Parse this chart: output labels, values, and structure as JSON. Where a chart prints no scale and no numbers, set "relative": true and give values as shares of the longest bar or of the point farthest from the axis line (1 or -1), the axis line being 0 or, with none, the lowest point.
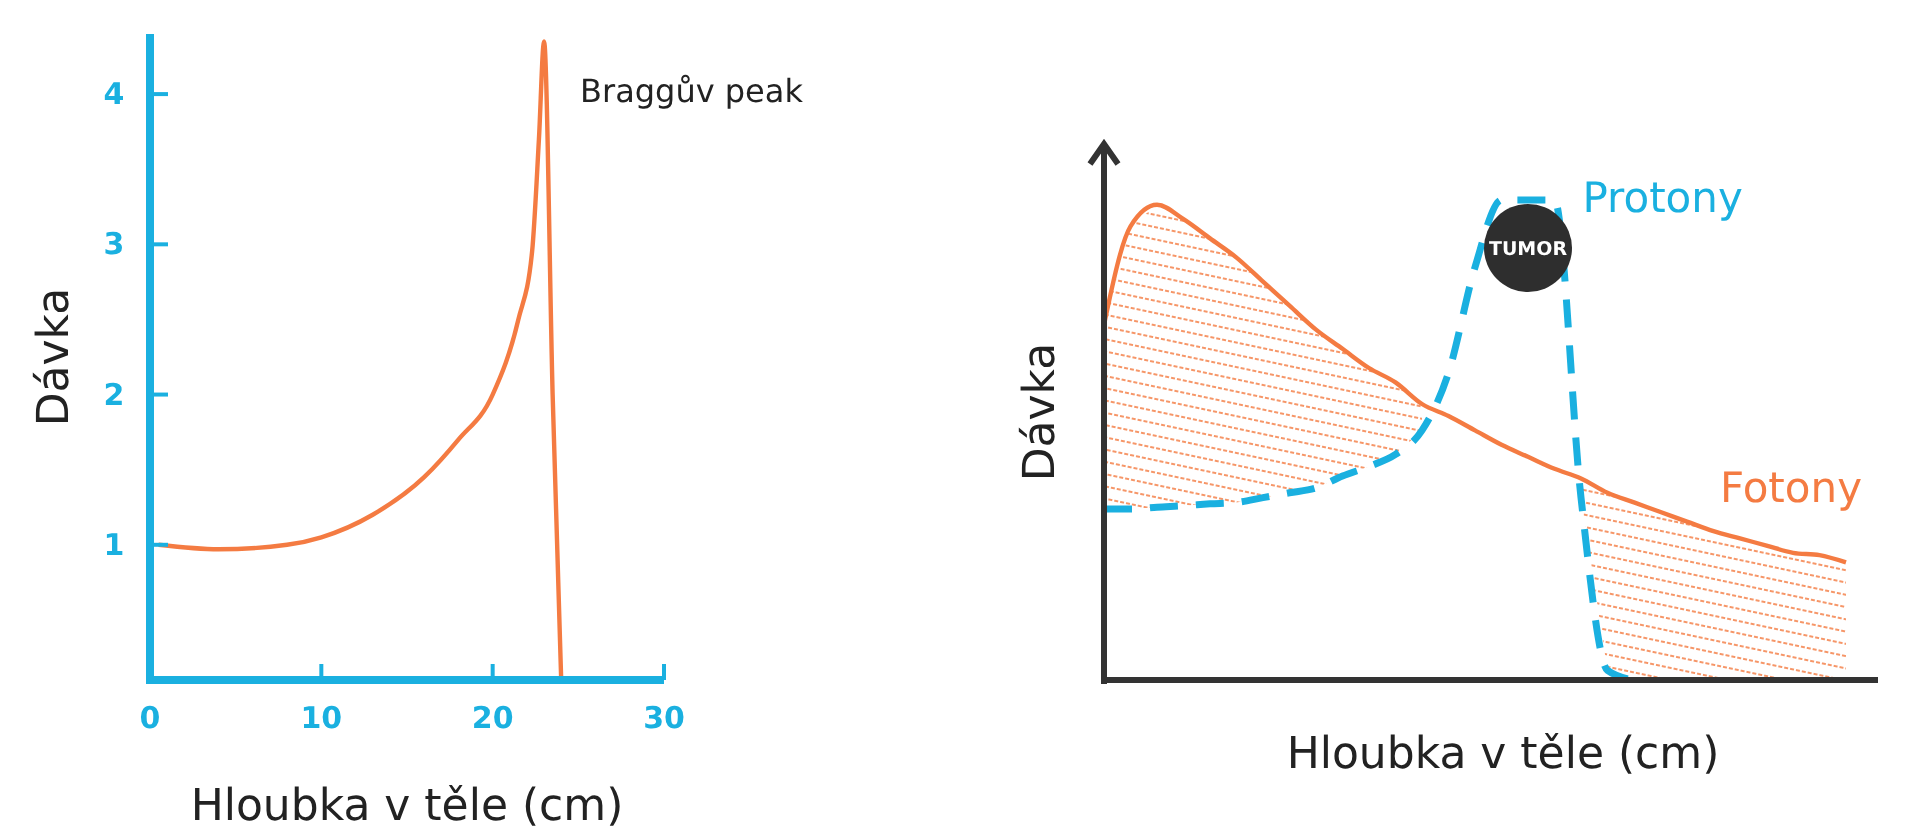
{
  "chart_data": [
    {
      "type": "line",
      "xlabel": "Hloubka v těle (cm)",
      "ylabel": "Dávka",
      "xlim": [
        0,
        30
      ],
      "ylim": [
        0.1,
        4.4
      ],
      "xticks": [
        0,
        10,
        20,
        30
      ],
      "yticks": [
        1,
        2,
        3,
        4
      ],
      "grid": false,
      "legend": false,
      "marker": "none",
      "annotations": [
        {
          "text": "Braggův peak",
          "x": 23,
          "y": 4.35
        }
      ],
      "series": [
        {
          "color": "#f47b42",
          "x": [
            0.5,
            4,
            8,
            10,
            13,
            16,
            18,
            20,
            21.5,
            22.3,
            22.7,
            23,
            23.5,
            24
          ],
          "values": [
            1.0,
            0.97,
            1.0,
            1.05,
            1.2,
            1.45,
            1.7,
            2.0,
            2.5,
            2.95,
            3.7,
            4.35,
            2.0,
            0.1
          ]
        }
      ]
    },
    {
      "type": "line",
      "relative": true,
      "xlabel": "Hloubka v těle (cm)",
      "ylabel": "Dávka",
      "grid": false,
      "legend": false,
      "marker": "none",
      "categories": [
        null,
        null,
        null,
        null,
        null,
        null,
        null,
        null,
        null,
        null,
        null,
        null,
        null,
        null,
        null,
        null,
        null,
        null,
        null,
        null,
        null,
        null,
        null,
        null,
        null,
        null,
        null,
        null,
        null
      ],
      "annotations": [
        {
          "text": "TUMOR",
          "y": 0.9
        }
      ],
      "series": [
        {
          "name": "Fotony",
          "color": "#f47b42",
          "line_style": "solid",
          "values": [
            0.74,
            0.945,
            0.99,
            0.96,
            0.92,
            0.88,
            0.83,
            0.78,
            0.73,
            0.69,
            0.65,
            0.62,
            0.575,
            0.55,
            0.52,
            0.49,
            0.465,
            0.44,
            0.42,
            0.39,
            0.37,
            0.35,
            0.33,
            0.31,
            0.295,
            0.28,
            0.265,
            0.26,
            0.245
          ],
          "lower": [
            0.356,
            0.356,
            0.36,
            0.363,
            0.367,
            0.37,
            0.38,
            0.39,
            0.4,
            0.425,
            0.445,
            0.47,
            0.52,
            null,
            null,
            null,
            null,
            null,
            0.38,
            0.02,
            0,
            0,
            0,
            0,
            0,
            0,
            0,
            0,
            0
          ],
          "upper": [
            0.74,
            0.945,
            0.99,
            0.96,
            0.92,
            0.88,
            0.83,
            0.78,
            0.73,
            0.69,
            0.65,
            0.62,
            0.575,
            null,
            null,
            null,
            null,
            null,
            0.42,
            0.39,
            0.37,
            0.35,
            0.33,
            0.31,
            0.295,
            0.28,
            0.265,
            0.26,
            0.245
          ]
        },
        {
          "name": "Protony",
          "color": "#1ab0e0",
          "line_style": "dashed",
          "values": [
            0.356,
            0.356,
            0.36,
            0.363,
            0.367,
            0.37,
            0.38,
            0.39,
            0.4,
            0.425,
            0.445,
            0.47,
            0.52,
            0.64,
            0.86,
            1.0,
            1.0,
            1.0,
            0.38,
            0.02,
            0,
            null,
            null,
            null,
            null,
            null,
            null,
            null,
            null
          ]
        }
      ]
    }
  ]
}
